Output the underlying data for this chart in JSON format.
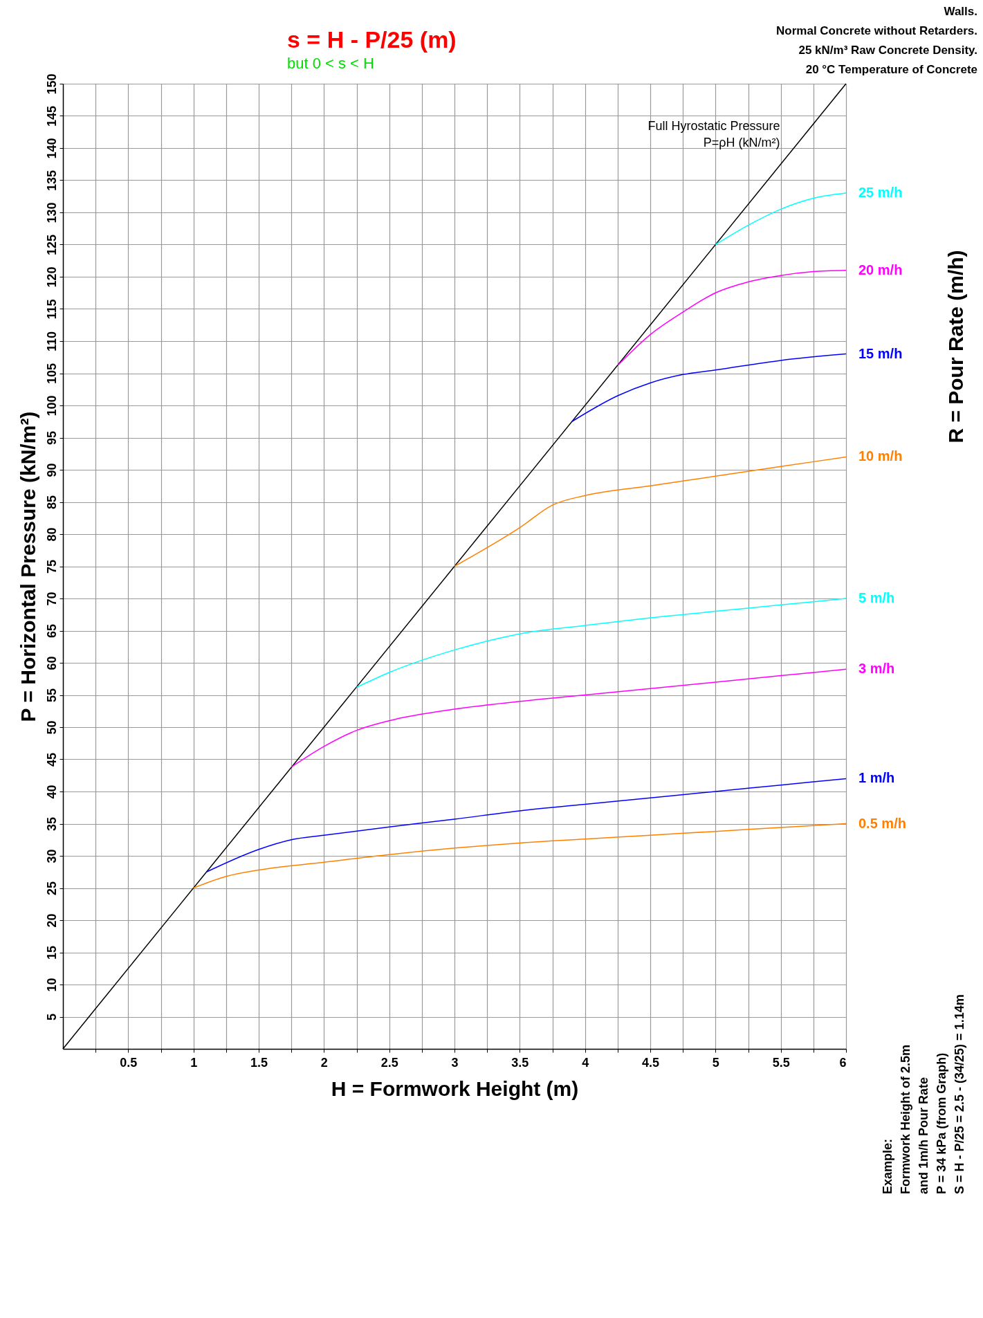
{
  "chart_data": {
    "type": "line",
    "title": "s = H - P/25 (m)",
    "subtitle": "but 0 < s < H",
    "xlabel": "H = Formwork Height (m)",
    "ylabel": "P = Horizontal Pressure (kN/m²)",
    "y2label": "R = Pour Rate (m/h)",
    "xlim": [
      0,
      6
    ],
    "ylim": [
      0,
      150
    ],
    "xticks": [
      {
        "value": 0.25,
        "label": null
      },
      0.5,
      {
        "value": 0.75,
        "label": null
      },
      1,
      {
        "value": 1.25,
        "label": null
      },
      1.5,
      {
        "value": 1.75,
        "label": null
      },
      2,
      {
        "value": 2.25,
        "label": null
      },
      2.5,
      {
        "value": 2.75,
        "label": null
      },
      3,
      {
        "value": 3.25,
        "label": null
      },
      3.5,
      {
        "value": 3.75,
        "label": null
      },
      4,
      {
        "value": 4.25,
        "label": null
      },
      4.5,
      {
        "value": 4.75,
        "label": null
      },
      5,
      {
        "value": 5.25,
        "label": null
      },
      5.5,
      {
        "value": 5.75,
        "label": null
      },
      6
    ],
    "yticks": [
      5,
      10,
      15,
      20,
      25,
      30,
      35,
      40,
      45,
      50,
      55,
      60,
      65,
      70,
      75,
      80,
      85,
      90,
      95,
      100,
      105,
      110,
      115,
      120,
      125,
      130,
      135,
      140,
      145,
      150
    ],
    "grid": true,
    "series": [
      {
        "color": "#000000",
        "x": [
          0,
          6
        ],
        "values": [
          0,
          150
        ]
      },
      {
        "name": "25 m/h",
        "color": "#00ffff",
        "x": [
          5,
          5.25,
          5.5,
          5.75,
          6
        ],
        "values": [
          125,
          128,
          130.5,
          132.2,
          133
        ]
      },
      {
        "name": "20 m/h",
        "color": "#ff00ff",
        "x": [
          4.25,
          4.5,
          4.75,
          5,
          5.25,
          5.5,
          5.75,
          6
        ],
        "values": [
          106.2,
          111,
          114.5,
          117.5,
          119.2,
          120.2,
          120.8,
          121
        ]
      },
      {
        "name": "15 m/h",
        "color": "#0000ff",
        "x": [
          3.9,
          4.25,
          4.5,
          4.75,
          5,
          5.5,
          6
        ],
        "values": [
          97.5,
          101.5,
          103.5,
          104.8,
          105.5,
          107,
          108
        ]
      },
      {
        "name": "10 m/h",
        "color": "#ff8000",
        "x": [
          3,
          3.5,
          3.75,
          4,
          4.5,
          5,
          5.5,
          6
        ],
        "values": [
          75,
          81,
          84.5,
          86,
          87.5,
          89,
          90.5,
          92
        ]
      },
      {
        "name": "5 m/h",
        "color": "#00ffff",
        "x": [
          2.25,
          2.5,
          3,
          3.5,
          4,
          4.5,
          5,
          5.5,
          6
        ],
        "values": [
          56.2,
          58.5,
          62,
          64.5,
          65.8,
          67,
          68,
          69,
          70
        ]
      },
      {
        "name": "3 m/h",
        "color": "#ff00ff",
        "x": [
          1.75,
          2,
          2.25,
          2.5,
          3,
          3.5,
          4,
          4.5,
          5,
          5.5,
          6
        ],
        "values": [
          43.8,
          47,
          49.5,
          51,
          52.8,
          54,
          55,
          56,
          57,
          58,
          59
        ]
      },
      {
        "name": "1 m/h",
        "color": "#0000ff",
        "x": [
          1.1,
          1.5,
          1.75,
          2,
          2.5,
          3,
          3.5,
          4,
          4.5,
          5,
          5.5,
          6
        ],
        "values": [
          27.5,
          31,
          32.5,
          33.2,
          34.5,
          35.7,
          37,
          38,
          39,
          40,
          41,
          42
        ]
      },
      {
        "name": "0.5 m/h",
        "color": "#ff8000",
        "x": [
          1,
          1.25,
          1.5,
          2,
          2.5,
          3,
          3.5,
          4,
          4.5,
          5,
          5.5,
          6
        ],
        "values": [
          25,
          26.8,
          27.8,
          29,
          30.2,
          31.2,
          32,
          32.6,
          33.2,
          33.8,
          34.4,
          35
        ]
      }
    ],
    "annotations": [
      {
        "text": "Full Hyrostatic Pressure\nP=ρH (kN/m²)",
        "x": 5.6,
        "y": 140
      },
      "Walls.\nNormal Concrete without Retarders.\n25 kN/m³ Raw Concrete Density.\n20 °C Temperature of Concrete",
      "Example:\nFormwork Height of 2.5m\nand 1m/h Pour Rate\nP = 34 kPa (from Graph)\nS = H - P/25 = 2.5 - (34/25) = 1.14m"
    ]
  }
}
